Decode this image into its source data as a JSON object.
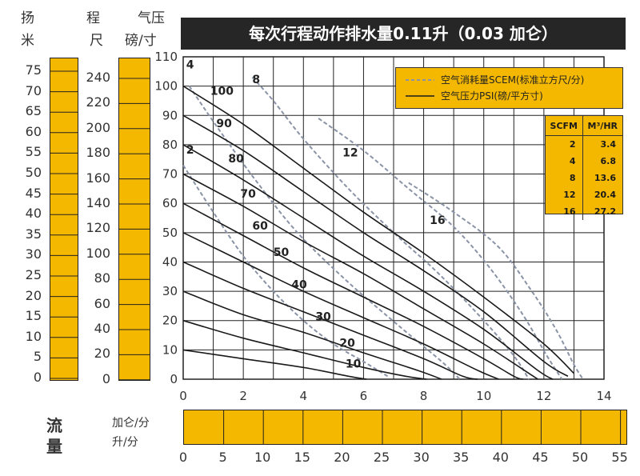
{
  "title": "每次行程动作排水量0.11升（0.03 加仑）",
  "left_scales": {
    "head_header": [
      "扬",
      "米"
    ],
    "stroke_header_top": "程",
    "stroke_header_bottom": "尺",
    "pressure_header_top": "气压",
    "pressure_header_bottom": "磅/寸",
    "head_ticks": [
      "75",
      "70",
      "65",
      "60",
      "55",
      "50",
      "45",
      "40",
      "35",
      "30",
      "25",
      "20",
      "15",
      "10",
      "5",
      "0"
    ],
    "stroke_ticks": [
      "240",
      "220",
      "200",
      "180",
      "160",
      "140",
      "120",
      "100",
      "80",
      "60",
      "40",
      "20",
      "0"
    ]
  },
  "flow": {
    "label": [
      "流",
      "量"
    ],
    "gpm_label": "加仑/分",
    "lpm_label": "升/分",
    "lpm_ticks": [
      "0",
      "5",
      "10",
      "15",
      "20",
      "25",
      "30",
      "35",
      "40",
      "45",
      "50",
      "55"
    ]
  },
  "legend": {
    "consumption": "空气消耗量SCEM(标准立方尺/分)",
    "pressure": "空气压力PSI(磅/平方寸)"
  },
  "conversion_table": {
    "headers": [
      "SCFM",
      "M³/HR"
    ],
    "rows": [
      [
        "2",
        "3.4"
      ],
      [
        "4",
        "6.8"
      ],
      [
        "8",
        "13.6"
      ],
      [
        "12",
        "20.4"
      ],
      [
        "16",
        "27.2"
      ]
    ]
  },
  "colors": {
    "accent": "#f5b800",
    "title_bg": "#262626",
    "curve": "#1a1a1a",
    "air_curve": "#8a93a6"
  },
  "chart_data": {
    "type": "line",
    "x_ticks": [
      0,
      2,
      4,
      6,
      8,
      10,
      12,
      14
    ],
    "y_ticks": [
      0,
      10,
      20,
      30,
      40,
      50,
      60,
      70,
      80,
      90,
      100,
      110
    ],
    "xlim": [
      0,
      14
    ],
    "ylim": [
      0,
      110
    ],
    "grid": true,
    "legend_position": "top-right",
    "pressure_series": [
      {
        "name": "100",
        "points": [
          [
            0,
            100
          ],
          [
            2,
            87
          ],
          [
            4,
            72
          ],
          [
            6,
            57
          ],
          [
            8,
            43
          ],
          [
            10,
            28
          ],
          [
            12,
            12
          ],
          [
            13,
            2
          ]
        ]
      },
      {
        "name": "90",
        "points": [
          [
            0,
            90
          ],
          [
            2,
            78
          ],
          [
            4,
            64
          ],
          [
            6,
            50
          ],
          [
            8,
            37
          ],
          [
            10,
            23
          ],
          [
            12,
            6
          ],
          [
            12.8,
            1
          ]
        ]
      },
      {
        "name": "80",
        "points": [
          [
            0,
            80
          ],
          [
            2,
            68
          ],
          [
            4,
            55
          ],
          [
            6,
            42
          ],
          [
            8,
            30
          ],
          [
            10,
            17
          ],
          [
            11.8,
            3
          ],
          [
            12.3,
            0
          ]
        ]
      },
      {
        "name": "70",
        "points": [
          [
            0,
            70
          ],
          [
            2,
            59
          ],
          [
            4,
            47
          ],
          [
            6,
            36
          ],
          [
            8,
            24
          ],
          [
            10,
            12
          ],
          [
            11.5,
            2
          ],
          [
            11.8,
            0
          ]
        ]
      },
      {
        "name": "60",
        "points": [
          [
            0,
            60
          ],
          [
            2,
            49
          ],
          [
            4,
            38
          ],
          [
            6,
            28
          ],
          [
            8,
            18
          ],
          [
            10,
            7
          ],
          [
            11,
            1
          ],
          [
            11.3,
            0
          ]
        ]
      },
      {
        "name": "50",
        "points": [
          [
            0,
            50
          ],
          [
            2,
            40
          ],
          [
            4,
            30
          ],
          [
            6,
            21
          ],
          [
            8,
            12
          ],
          [
            9.8,
            3
          ],
          [
            10.5,
            0
          ]
        ]
      },
      {
        "name": "40",
        "points": [
          [
            0,
            40
          ],
          [
            2,
            31
          ],
          [
            4,
            23
          ],
          [
            6,
            15
          ],
          [
            8,
            7
          ],
          [
            9.3,
            1
          ],
          [
            9.8,
            0
          ]
        ]
      },
      {
        "name": "30",
        "points": [
          [
            0,
            30
          ],
          [
            2,
            22
          ],
          [
            4,
            16
          ],
          [
            6,
            9
          ],
          [
            7.8,
            3
          ],
          [
            8.6,
            0
          ]
        ]
      },
      {
        "name": "20",
        "points": [
          [
            0,
            20
          ],
          [
            2,
            14
          ],
          [
            4,
            9
          ],
          [
            6,
            4
          ],
          [
            7.4,
            1
          ],
          [
            8.1,
            0
          ]
        ]
      },
      {
        "name": "10",
        "points": [
          [
            0,
            10
          ],
          [
            2,
            7
          ],
          [
            4,
            4
          ],
          [
            5.5,
            1
          ],
          [
            6.1,
            0
          ]
        ]
      }
    ],
    "air_series": [
      {
        "name": "2",
        "points": [
          [
            0,
            73
          ],
          [
            1,
            57
          ],
          [
            2,
            42
          ],
          [
            3,
            30
          ],
          [
            4,
            20
          ],
          [
            5,
            12
          ],
          [
            6,
            6
          ],
          [
            6.8,
            1
          ]
        ]
      },
      {
        "name": "4",
        "points": [
          [
            0.2,
            100
          ],
          [
            1.2,
            85
          ],
          [
            2.4,
            68
          ],
          [
            3.8,
            50
          ],
          [
            5.5,
            33
          ],
          [
            7.2,
            18
          ],
          [
            8.6,
            6
          ],
          [
            9.2,
            0
          ]
        ]
      },
      {
        "name": "8",
        "points": [
          [
            2.3,
            103
          ],
          [
            3,
            95
          ],
          [
            4,
            82
          ],
          [
            5.5,
            65
          ],
          [
            7,
            50
          ],
          [
            8.5,
            36
          ],
          [
            10,
            20
          ],
          [
            11,
            8
          ],
          [
            11.5,
            0
          ]
        ]
      },
      {
        "name": "12",
        "points": [
          [
            4.5,
            89
          ],
          [
            6,
            78
          ],
          [
            7.5,
            65
          ],
          [
            9,
            52
          ],
          [
            10.2,
            38
          ],
          [
            11.3,
            22
          ],
          [
            12.1,
            8
          ],
          [
            12.6,
            0
          ]
        ]
      },
      {
        "name": "16",
        "points": [
          [
            7.5,
            67
          ],
          [
            9,
            57
          ],
          [
            10.5,
            45
          ],
          [
            11.6,
            30
          ],
          [
            12.4,
            17
          ],
          [
            13,
            5
          ],
          [
            13.3,
            0
          ]
        ]
      }
    ],
    "curve_labels": [
      {
        "text": "4",
        "x": 0.1,
        "y": 106
      },
      {
        "text": "100",
        "x": 0.9,
        "y": 97
      },
      {
        "text": "8",
        "x": 2.3,
        "y": 101
      },
      {
        "text": "90",
        "x": 1.1,
        "y": 86
      },
      {
        "text": "2",
        "x": 0.1,
        "y": 77
      },
      {
        "text": "80",
        "x": 1.5,
        "y": 74
      },
      {
        "text": "70",
        "x": 1.9,
        "y": 62
      },
      {
        "text": "60",
        "x": 2.3,
        "y": 51
      },
      {
        "text": "50",
        "x": 3.0,
        "y": 42
      },
      {
        "text": "40",
        "x": 3.6,
        "y": 31
      },
      {
        "text": "30",
        "x": 4.4,
        "y": 20
      },
      {
        "text": "12",
        "x": 5.3,
        "y": 76
      },
      {
        "text": "16",
        "x": 8.2,
        "y": 53
      },
      {
        "text": "20",
        "x": 5.2,
        "y": 11
      },
      {
        "text": "10",
        "x": 5.4,
        "y": 4
      }
    ]
  }
}
